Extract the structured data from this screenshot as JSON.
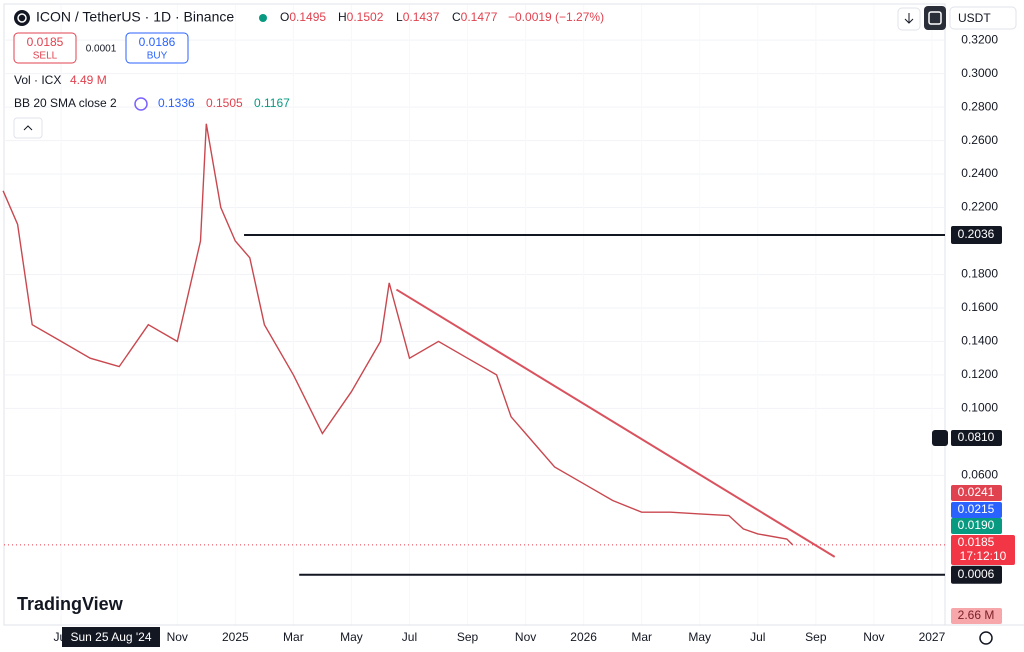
{
  "header": {
    "symbol": "ICON / TetherUS · 1D · Binance",
    "ohlc": [
      {
        "key": "O",
        "value": "0.1495"
      },
      {
        "key": "H",
        "value": "0.1502"
      },
      {
        "key": "L",
        "value": "0.1437"
      },
      {
        "key": "C",
        "value": "0.1477"
      }
    ],
    "change": "−0.0019 (−1.27%)",
    "currency": "USDT"
  },
  "trade": {
    "sell_price": "0.0185",
    "sell_label": "SELL",
    "spread": "0.0001",
    "buy_price": "0.0186",
    "buy_label": "BUY"
  },
  "indicators": {
    "volume_name": "Vol · ICX",
    "volume_value": "4.49 M",
    "bb_name": "BB 20 SMA close 2",
    "bb_values": [
      "0.1336",
      "0.1505",
      "0.1167"
    ]
  },
  "branding": "TradingView",
  "chart": {
    "xlim": [
      -7.97,
      24.45
    ],
    "ylim": [
      -0.03,
      0.341
    ],
    "yticks": [
      {
        "value": 0.32,
        "label": "0.3200"
      },
      {
        "value": 0.3,
        "label": "0.3000"
      },
      {
        "value": 0.28,
        "label": "0.2800"
      },
      {
        "value": 0.26,
        "label": "0.2600"
      },
      {
        "value": 0.24,
        "label": "0.2400"
      },
      {
        "value": 0.22,
        "label": "0.2200"
      },
      {
        "value": 0.18,
        "label": "0.1800"
      },
      {
        "value": 0.16,
        "label": "0.1600"
      },
      {
        "value": 0.14,
        "label": "0.1400"
      },
      {
        "value": 0.12,
        "label": "0.1200"
      },
      {
        "value": 0.1,
        "label": "0.1000"
      },
      {
        "value": 0.06,
        "label": "0.0600"
      }
    ],
    "xticks": [
      {
        "value": -6,
        "label": "Jul"
      },
      {
        "value": -2,
        "label": "Nov"
      },
      {
        "value": 0,
        "label": "2025"
      },
      {
        "value": 2,
        "label": "Mar"
      },
      {
        "value": 4,
        "label": "May"
      },
      {
        "value": 6,
        "label": "Jul"
      },
      {
        "value": 8,
        "label": "Sep"
      },
      {
        "value": 10,
        "label": "Nov"
      },
      {
        "value": 12,
        "label": "2026"
      },
      {
        "value": 14,
        "label": "Mar"
      },
      {
        "value": 16,
        "label": "May"
      },
      {
        "value": 18,
        "label": "Jul"
      },
      {
        "value": 20,
        "label": "Sep"
      },
      {
        "value": 22,
        "label": "Nov"
      },
      {
        "value": 24,
        "label": "2027"
      }
    ],
    "crosshair_date": "Sun 25 Aug '24",
    "price": {
      "color": "#c9484f",
      "x": [
        -8,
        -7.5,
        -7,
        -6,
        -5,
        -4,
        -3,
        -2,
        -1.2,
        -1,
        -0.5,
        0,
        0.5,
        1,
        2,
        3,
        4,
        5,
        5.3,
        6,
        7,
        8,
        9,
        9.5,
        10,
        11,
        12,
        13,
        14,
        15,
        16,
        17,
        17.5,
        18,
        19,
        19.2
      ],
      "values": [
        0.23,
        0.21,
        0.15,
        0.14,
        0.13,
        0.125,
        0.15,
        0.14,
        0.2,
        0.27,
        0.22,
        0.2,
        0.19,
        0.15,
        0.12,
        0.085,
        0.11,
        0.14,
        0.175,
        0.13,
        0.14,
        0.13,
        0.12,
        0.095,
        0.085,
        0.065,
        0.055,
        0.045,
        0.038,
        0.038,
        0.037,
        0.036,
        0.028,
        0.025,
        0.022,
        0.0185
      ]
    },
    "trendline": {
      "color": "#d9535f",
      "x": [
        5.55,
        20.65
      ],
      "values": [
        0.171,
        0.0113
      ]
    },
    "levels": [
      {
        "value": 0.2036,
        "from": 0.3,
        "label": "0.2036"
      },
      {
        "value": 0.0006,
        "from": 2.2,
        "label": "0.0006"
      }
    ],
    "price_labels": [
      {
        "label": "0.0810",
        "bg": "#131722",
        "fg": "#ffffff"
      },
      {
        "label": "0.0241",
        "bg": "#e0424f",
        "fg": "#ffffff"
      },
      {
        "label": "0.0215",
        "bg": "#2962ff",
        "fg": "#ffffff"
      },
      {
        "label": "0.0190",
        "bg": "#089981",
        "fg": "#ffffff"
      },
      {
        "label": "0.0185",
        "bg": "#f23645",
        "fg": "#ffffff",
        "sub": "17:12:10"
      },
      {
        "label": "2.66 M",
        "bg": "#f7a6a9",
        "fg": "#7a1f25"
      }
    ]
  }
}
